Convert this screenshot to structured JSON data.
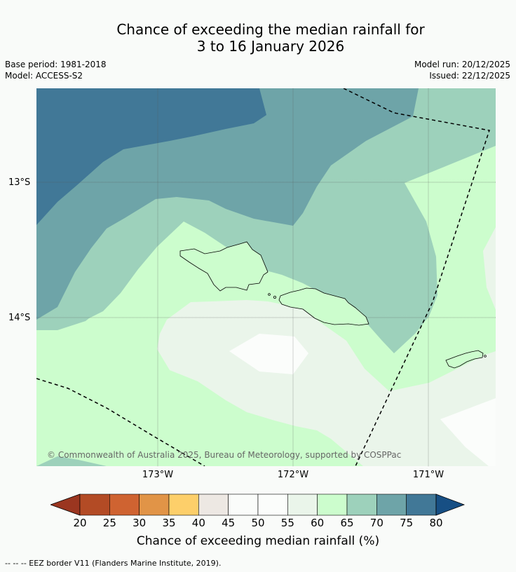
{
  "title_line1": "Chance of exceeding the median rainfall for",
  "title_line2": "3 to 16 January 2026",
  "base_period": "Base period: 1981-2018",
  "model": "Model: ACCESS-S2",
  "model_run": "Model run: 20/12/2025",
  "issued": "Issued: 22/12/2025",
  "lat_ticks": [
    "13°S",
    "14°S"
  ],
  "lon_ticks": [
    "173°W",
    "172°W",
    "171°W"
  ],
  "copyright": "© Commonwealth of Australia 2025, Bureau of Meteorology, supported by COSPPac",
  "colorbar": {
    "ticks": [
      "20",
      "25",
      "30",
      "35",
      "40",
      "45",
      "50",
      "55",
      "60",
      "65",
      "70",
      "75",
      "80"
    ],
    "colors": [
      "#b34b25",
      "#cf6331",
      "#e19447",
      "#fdcf6a",
      "#ede8e3",
      "#fafcfa",
      "#fbfdfb",
      "#eaf5ea",
      "#ccfdcd",
      "#9dd1bb",
      "#6ea4a8",
      "#417897"
    ],
    "under_color": "#9b3620",
    "over_color": "#174f84",
    "label": "Chance of exceeding median rainfall (%)"
  },
  "footer": "--  --  -- EEZ border V11 (Flanders Marine Institute, 2019)."
}
